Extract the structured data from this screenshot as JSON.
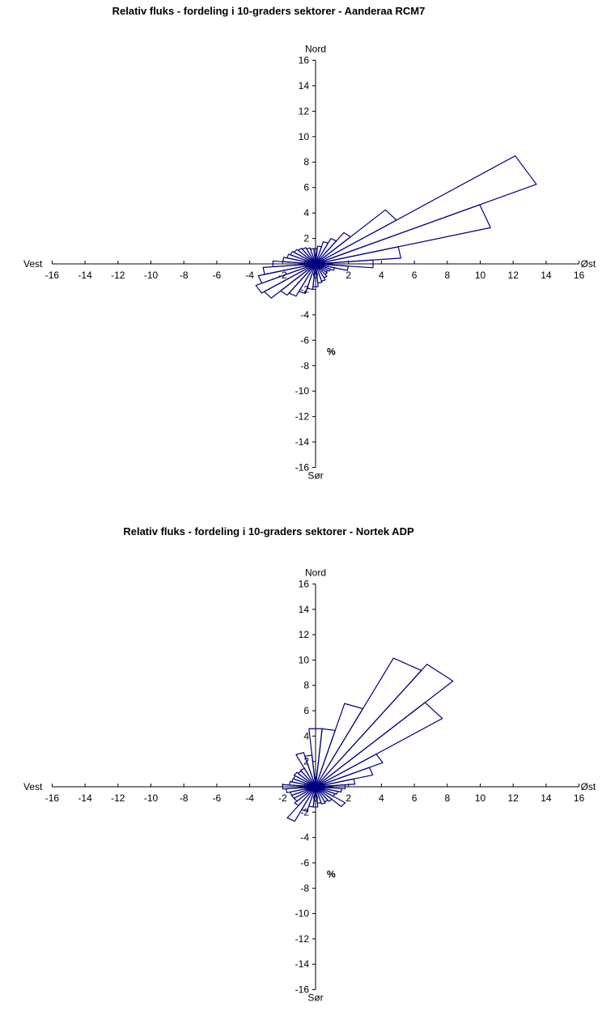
{
  "chart_data": [
    {
      "type": "polar-bar",
      "title": "Relativ fluks - fordeling i 10-graders sektorer - Aanderaa RCM7",
      "direction_labels": {
        "north": "Nord",
        "south": "Sør",
        "east": "Øst",
        "west": "Vest"
      },
      "unit_label": "%",
      "xlim": [
        -16,
        16
      ],
      "ylim": [
        -16,
        16
      ],
      "x_ticks": [
        -16,
        -14,
        -12,
        -10,
        -8,
        -6,
        -4,
        -2,
        0,
        2,
        4,
        6,
        8,
        10,
        12,
        14,
        16
      ],
      "y_ticks": [
        -16,
        -14,
        -12,
        -10,
        -8,
        -6,
        -4,
        -2,
        0,
        2,
        4,
        6,
        8,
        10,
        12,
        14,
        16
      ],
      "sector_width_deg": 10,
      "line_color": "#000080",
      "sectors": [
        {
          "bearing": 0,
          "value": 1.2
        },
        {
          "bearing": 10,
          "value": 1.4
        },
        {
          "bearing": 20,
          "value": 1.8
        },
        {
          "bearing": 30,
          "value": 2.2
        },
        {
          "bearing": 40,
          "value": 3.0
        },
        {
          "bearing": 50,
          "value": 6.0
        },
        {
          "bearing": 60,
          "value": 14.8
        },
        {
          "bearing": 70,
          "value": 11.0
        },
        {
          "bearing": 80,
          "value": 5.2
        },
        {
          "bearing": 90,
          "value": 3.5
        },
        {
          "bearing": 100,
          "value": 2.0
        },
        {
          "bearing": 110,
          "value": 1.2
        },
        {
          "bearing": 120,
          "value": 1.0
        },
        {
          "bearing": 130,
          "value": 0.9
        },
        {
          "bearing": 140,
          "value": 1.0
        },
        {
          "bearing": 150,
          "value": 1.2
        },
        {
          "bearing": 160,
          "value": 1.4
        },
        {
          "bearing": 170,
          "value": 1.5
        },
        {
          "bearing": 180,
          "value": 1.8
        },
        {
          "bearing": 190,
          "value": 2.0
        },
        {
          "bearing": 200,
          "value": 2.4
        },
        {
          "bearing": 210,
          "value": 2.8
        },
        {
          "bearing": 220,
          "value": 3.0
        },
        {
          "bearing": 230,
          "value": 3.8
        },
        {
          "bearing": 240,
          "value": 4.0
        },
        {
          "bearing": 250,
          "value": 3.6
        },
        {
          "bearing": 260,
          "value": 3.2
        },
        {
          "bearing": 270,
          "value": 2.6
        },
        {
          "bearing": 280,
          "value": 2.0
        },
        {
          "bearing": 290,
          "value": 1.8
        },
        {
          "bearing": 300,
          "value": 1.7
        },
        {
          "bearing": 310,
          "value": 1.6
        },
        {
          "bearing": 320,
          "value": 1.5
        },
        {
          "bearing": 330,
          "value": 1.4
        },
        {
          "bearing": 340,
          "value": 1.3
        },
        {
          "bearing": 350,
          "value": 1.2
        }
      ]
    },
    {
      "type": "polar-bar",
      "title": "Relativ fluks - fordeling i 10-graders sektorer - Nortek ADP",
      "direction_labels": {
        "north": "Nord",
        "south": "Sør",
        "east": "Øst",
        "west": "Vest"
      },
      "unit_label": "%",
      "xlim": [
        -16,
        16
      ],
      "ylim": [
        -16,
        16
      ],
      "x_ticks": [
        -16,
        -14,
        -12,
        -10,
        -8,
        -6,
        -4,
        -2,
        0,
        2,
        4,
        6,
        8,
        10,
        12,
        14,
        16
      ],
      "y_ticks": [
        -16,
        -14,
        -12,
        -10,
        -8,
        -6,
        -4,
        -2,
        0,
        2,
        4,
        6,
        8,
        10,
        12,
        14,
        16
      ],
      "sector_width_deg": 10,
      "line_color": "#000080",
      "sectors": [
        {
          "bearing": 0,
          "value": 4.6
        },
        {
          "bearing": 10,
          "value": 4.6
        },
        {
          "bearing": 20,
          "value": 6.8
        },
        {
          "bearing": 30,
          "value": 11.2
        },
        {
          "bearing": 40,
          "value": 11.8
        },
        {
          "bearing": 50,
          "value": 9.4
        },
        {
          "bearing": 60,
          "value": 4.5
        },
        {
          "bearing": 70,
          "value": 3.6
        },
        {
          "bearing": 80,
          "value": 2.4
        },
        {
          "bearing": 90,
          "value": 1.8
        },
        {
          "bearing": 100,
          "value": 1.6
        },
        {
          "bearing": 110,
          "value": 1.4
        },
        {
          "bearing": 120,
          "value": 1.3
        },
        {
          "bearing": 130,
          "value": 2.2
        },
        {
          "bearing": 140,
          "value": 1.4
        },
        {
          "bearing": 150,
          "value": 1.3
        },
        {
          "bearing": 160,
          "value": 1.4
        },
        {
          "bearing": 170,
          "value": 1.3
        },
        {
          "bearing": 180,
          "value": 1.6
        },
        {
          "bearing": 190,
          "value": 1.6
        },
        {
          "bearing": 200,
          "value": 2.0
        },
        {
          "bearing": 210,
          "value": 3.0
        },
        {
          "bearing": 220,
          "value": 1.8
        },
        {
          "bearing": 230,
          "value": 1.6
        },
        {
          "bearing": 240,
          "value": 1.6
        },
        {
          "bearing": 250,
          "value": 1.6
        },
        {
          "bearing": 260,
          "value": 1.8
        },
        {
          "bearing": 270,
          "value": 2.0
        },
        {
          "bearing": 280,
          "value": 1.6
        },
        {
          "bearing": 290,
          "value": 1.5
        },
        {
          "bearing": 300,
          "value": 1.5
        },
        {
          "bearing": 310,
          "value": 1.6
        },
        {
          "bearing": 320,
          "value": 1.5
        },
        {
          "bearing": 330,
          "value": 1.6
        },
        {
          "bearing": 340,
          "value": 2.8
        },
        {
          "bearing": 350,
          "value": 2.5
        }
      ]
    }
  ]
}
